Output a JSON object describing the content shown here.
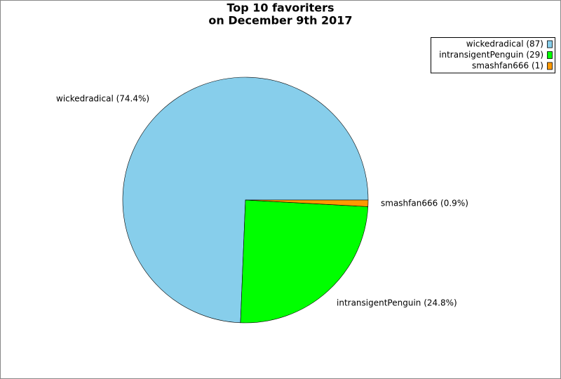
{
  "chart_data": {
    "type": "pie",
    "title": "Top 10 favoriters",
    "subtitle": "on December 9th 2017",
    "values": [
      87,
      29,
      1
    ],
    "labels": [
      "wickedradical (87)",
      "intransigentPenguin (29)",
      "smashfan666 (1)"
    ],
    "value_labels": [
      "wickedradical (74.4%)",
      "intransigentPenguin (24.8%)",
      "smashfan666 (0.9%)"
    ],
    "colors": [
      "#87ceeb",
      "#00ff00",
      "#ff9900"
    ],
    "legend": "top-right"
  }
}
